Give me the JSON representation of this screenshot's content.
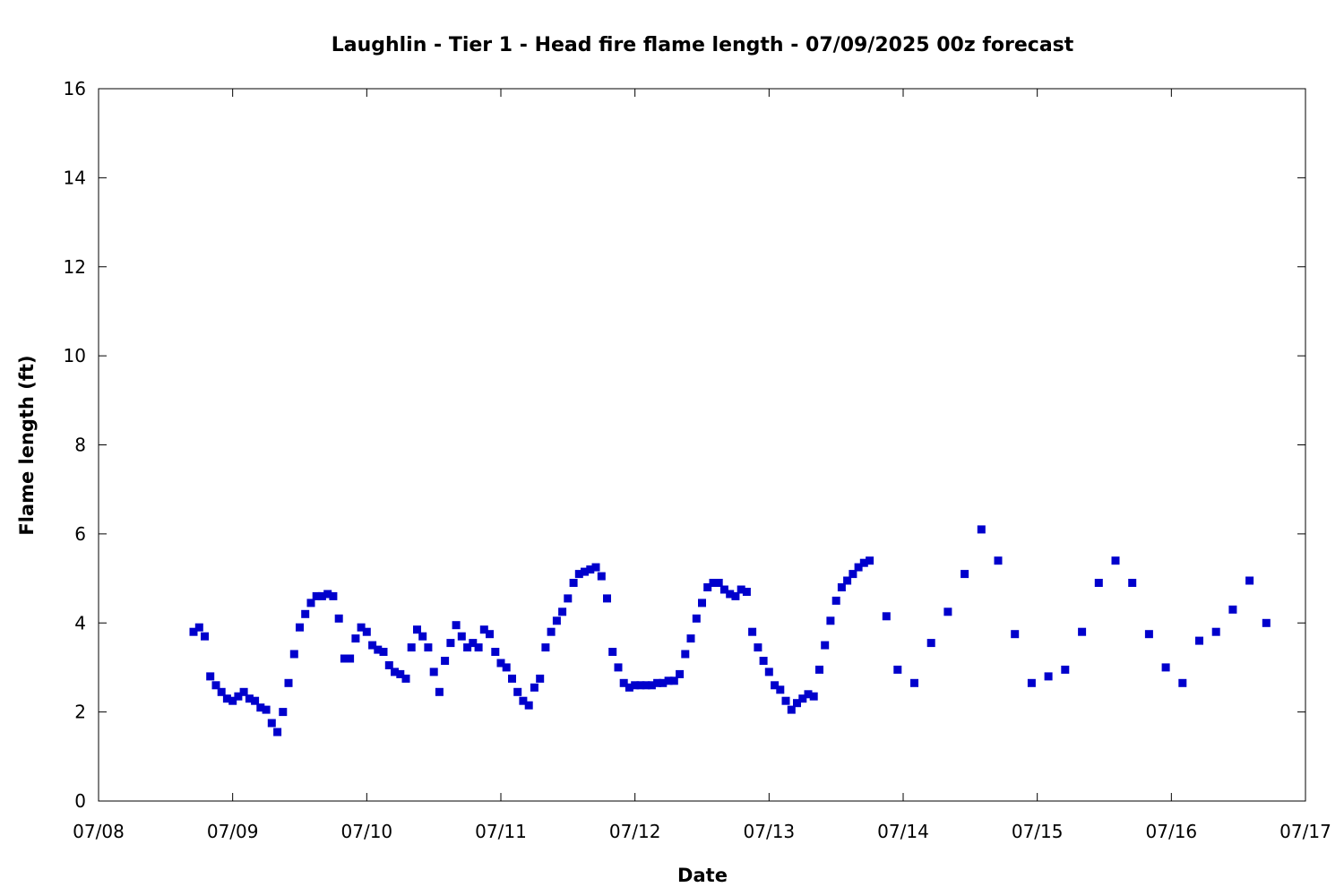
{
  "chart_data": {
    "type": "scatter",
    "title": "Laughlin - Tier 1 - Head fire flame length - 07/09/2025 00z forecast",
    "xlabel": "Date",
    "ylabel": "Flame length (ft)",
    "xlim": [
      "07/08",
      "07/17"
    ],
    "ylim": [
      0,
      16
    ],
    "xticks": [
      "07/08",
      "07/09",
      "07/10",
      "07/11",
      "07/12",
      "07/13",
      "07/14",
      "07/15",
      "07/16",
      "07/17"
    ],
    "yticks": [
      "0",
      "2",
      "4",
      "6",
      "8",
      "10",
      "12",
      "14",
      "16"
    ],
    "grid": false,
    "marker_color": "#0000cc",
    "series": [
      {
        "points": [
          [
            "07/08 17:00",
            3.8
          ],
          [
            "07/08 18:00",
            3.9
          ],
          [
            "07/08 19:00",
            3.7
          ],
          [
            "07/08 20:00",
            2.8
          ],
          [
            "07/08 21:00",
            2.6
          ],
          [
            "07/08 22:00",
            2.45
          ],
          [
            "07/08 23:00",
            2.3
          ],
          [
            "07/09 00:00",
            2.25
          ],
          [
            "07/09 01:00",
            2.35
          ],
          [
            "07/09 02:00",
            2.45
          ],
          [
            "07/09 03:00",
            2.3
          ],
          [
            "07/09 04:00",
            2.25
          ],
          [
            "07/09 05:00",
            2.1
          ],
          [
            "07/09 06:00",
            2.05
          ],
          [
            "07/09 07:00",
            1.75
          ],
          [
            "07/09 08:00",
            1.55
          ],
          [
            "07/09 09:00",
            2.0
          ],
          [
            "07/09 10:00",
            2.65
          ],
          [
            "07/09 11:00",
            3.3
          ],
          [
            "07/09 12:00",
            3.9
          ],
          [
            "07/09 13:00",
            4.2
          ],
          [
            "07/09 14:00",
            4.45
          ],
          [
            "07/09 15:00",
            4.6
          ],
          [
            "07/09 16:00",
            4.6
          ],
          [
            "07/09 17:00",
            4.65
          ],
          [
            "07/09 18:00",
            4.6
          ],
          [
            "07/09 19:00",
            4.1
          ],
          [
            "07/09 20:00",
            3.2
          ],
          [
            "07/09 21:00",
            3.2
          ],
          [
            "07/09 22:00",
            3.65
          ],
          [
            "07/09 23:00",
            3.9
          ],
          [
            "07/10 00:00",
            3.8
          ],
          [
            "07/10 01:00",
            3.5
          ],
          [
            "07/10 02:00",
            3.4
          ],
          [
            "07/10 03:00",
            3.35
          ],
          [
            "07/10 04:00",
            3.05
          ],
          [
            "07/10 05:00",
            2.9
          ],
          [
            "07/10 06:00",
            2.85
          ],
          [
            "07/10 07:00",
            2.75
          ],
          [
            "07/10 08:00",
            3.45
          ],
          [
            "07/10 09:00",
            3.85
          ],
          [
            "07/10 10:00",
            3.7
          ],
          [
            "07/10 11:00",
            3.45
          ],
          [
            "07/10 12:00",
            2.9
          ],
          [
            "07/10 13:00",
            2.45
          ],
          [
            "07/10 14:00",
            3.15
          ],
          [
            "07/10 15:00",
            3.55
          ],
          [
            "07/10 16:00",
            3.95
          ],
          [
            "07/10 17:00",
            3.7
          ],
          [
            "07/10 18:00",
            3.45
          ],
          [
            "07/10 19:00",
            3.55
          ],
          [
            "07/10 20:00",
            3.45
          ],
          [
            "07/10 21:00",
            3.85
          ],
          [
            "07/10 22:00",
            3.75
          ],
          [
            "07/10 23:00",
            3.35
          ],
          [
            "07/11 00:00",
            3.1
          ],
          [
            "07/11 01:00",
            3.0
          ],
          [
            "07/11 02:00",
            2.75
          ],
          [
            "07/11 03:00",
            2.45
          ],
          [
            "07/11 04:00",
            2.25
          ],
          [
            "07/11 05:00",
            2.15
          ],
          [
            "07/11 06:00",
            2.55
          ],
          [
            "07/11 07:00",
            2.75
          ],
          [
            "07/11 08:00",
            3.45
          ],
          [
            "07/11 09:00",
            3.8
          ],
          [
            "07/11 10:00",
            4.05
          ],
          [
            "07/11 11:00",
            4.25
          ],
          [
            "07/11 12:00",
            4.55
          ],
          [
            "07/11 13:00",
            4.9
          ],
          [
            "07/11 14:00",
            5.1
          ],
          [
            "07/11 15:00",
            5.15
          ],
          [
            "07/11 16:00",
            5.2
          ],
          [
            "07/11 17:00",
            5.25
          ],
          [
            "07/11 18:00",
            5.05
          ],
          [
            "07/11 19:00",
            4.55
          ],
          [
            "07/11 20:00",
            3.35
          ],
          [
            "07/11 21:00",
            3.0
          ],
          [
            "07/11 22:00",
            2.65
          ],
          [
            "07/11 23:00",
            2.55
          ],
          [
            "07/12 00:00",
            2.6
          ],
          [
            "07/12 01:00",
            2.6
          ],
          [
            "07/12 02:00",
            2.6
          ],
          [
            "07/12 03:00",
            2.6
          ],
          [
            "07/12 04:00",
            2.65
          ],
          [
            "07/12 05:00",
            2.65
          ],
          [
            "07/12 06:00",
            2.7
          ],
          [
            "07/12 07:00",
            2.7
          ],
          [
            "07/12 08:00",
            2.85
          ],
          [
            "07/12 09:00",
            3.3
          ],
          [
            "07/12 10:00",
            3.65
          ],
          [
            "07/12 11:00",
            4.1
          ],
          [
            "07/12 12:00",
            4.45
          ],
          [
            "07/12 13:00",
            4.8
          ],
          [
            "07/12 14:00",
            4.9
          ],
          [
            "07/12 15:00",
            4.9
          ],
          [
            "07/12 16:00",
            4.75
          ],
          [
            "07/12 17:00",
            4.65
          ],
          [
            "07/12 18:00",
            4.6
          ],
          [
            "07/12 19:00",
            4.75
          ],
          [
            "07/12 20:00",
            4.7
          ],
          [
            "07/12 21:00",
            3.8
          ],
          [
            "07/12 22:00",
            3.45
          ],
          [
            "07/12 23:00",
            3.15
          ],
          [
            "07/13 00:00",
            2.9
          ],
          [
            "07/13 01:00",
            2.6
          ],
          [
            "07/13 02:00",
            2.5
          ],
          [
            "07/13 03:00",
            2.25
          ],
          [
            "07/13 04:00",
            2.05
          ],
          [
            "07/13 05:00",
            2.2
          ],
          [
            "07/13 06:00",
            2.3
          ],
          [
            "07/13 07:00",
            2.4
          ],
          [
            "07/13 08:00",
            2.35
          ],
          [
            "07/13 09:00",
            2.95
          ],
          [
            "07/13 10:00",
            3.5
          ],
          [
            "07/13 11:00",
            4.05
          ],
          [
            "07/13 12:00",
            4.5
          ],
          [
            "07/13 13:00",
            4.8
          ],
          [
            "07/13 14:00",
            4.95
          ],
          [
            "07/13 15:00",
            5.1
          ],
          [
            "07/13 16:00",
            5.25
          ],
          [
            "07/13 17:00",
            5.35
          ],
          [
            "07/13 18:00",
            5.4
          ],
          [
            "07/13 21:00",
            4.15
          ],
          [
            "07/13 23:00",
            2.95
          ],
          [
            "07/14 02:00",
            2.65
          ],
          [
            "07/14 05:00",
            3.55
          ],
          [
            "07/14 08:00",
            4.25
          ],
          [
            "07/14 11:00",
            5.1
          ],
          [
            "07/14 14:00",
            6.1
          ],
          [
            "07/14 17:00",
            5.4
          ],
          [
            "07/14 20:00",
            3.75
          ],
          [
            "07/14 23:00",
            2.65
          ],
          [
            "07/15 02:00",
            2.8
          ],
          [
            "07/15 05:00",
            2.95
          ],
          [
            "07/15 08:00",
            3.8
          ],
          [
            "07/15 11:00",
            4.9
          ],
          [
            "07/15 14:00",
            5.4
          ],
          [
            "07/15 17:00",
            4.9
          ],
          [
            "07/15 20:00",
            3.75
          ],
          [
            "07/15 23:00",
            3.0
          ],
          [
            "07/16 02:00",
            2.65
          ],
          [
            "07/16 05:00",
            3.6
          ],
          [
            "07/16 08:00",
            3.8
          ],
          [
            "07/16 11:00",
            4.3
          ],
          [
            "07/16 14:00",
            4.95
          ],
          [
            "07/16 17:00",
            4.0
          ]
        ]
      }
    ]
  }
}
